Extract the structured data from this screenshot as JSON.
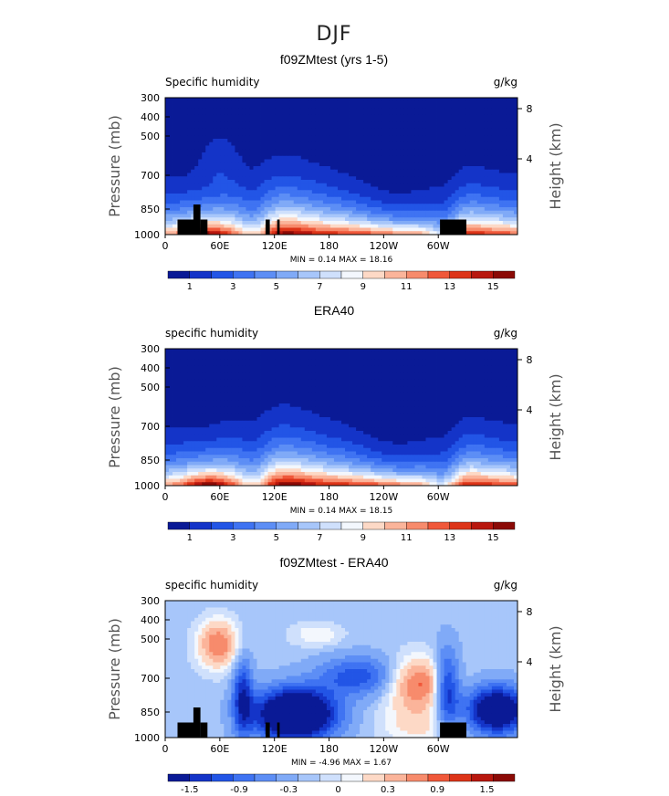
{
  "suptitle": "DJF",
  "chart_data": [
    {
      "type": "heatmap",
      "title": "f09ZMtest (yrs 1-5)",
      "variable_label": "Specific humidity",
      "units": "g/kg",
      "ylabel": "Pressure (mb)",
      "y2label": "Height (km)",
      "xticks": [
        "0",
        "60E",
        "120E",
        "180",
        "120W",
        "60W"
      ],
      "yticks": [
        "300",
        "400",
        "500",
        "700",
        "850",
        "1000"
      ],
      "y2ticks": [
        "8",
        "4"
      ],
      "stats_text": "MIN =    0.14   MAX =   18.16",
      "min": 0.14,
      "max": 18.16,
      "colorbar_labels": [
        "1",
        "3",
        "5",
        "7",
        "9",
        "11",
        "13",
        "15"
      ],
      "colorbar_colors": [
        "#0a1a96",
        "#1434c8",
        "#2255e6",
        "#3f73f2",
        "#5d8ef5",
        "#80aaf7",
        "#a7c6fa",
        "#cfe0fc",
        "#f3f7fd",
        "#fdd9c6",
        "#fbb49a",
        "#f78b6c",
        "#f0583a",
        "#dd3418",
        "#b8170e",
        "#8b0a06"
      ],
      "levels": [
        0,
        1,
        2,
        3,
        4,
        5,
        6,
        7,
        8,
        9,
        10,
        11,
        12,
        13,
        14,
        15,
        16
      ]
    },
    {
      "type": "heatmap",
      "title": "ERA40",
      "variable_label": "specific humidity",
      "units": "g/kg",
      "ylabel": "Pressure (mb)",
      "y2label": "Height (km)",
      "xticks": [
        "0",
        "60E",
        "120E",
        "180",
        "120W",
        "60W"
      ],
      "yticks": [
        "300",
        "400",
        "500",
        "700",
        "850",
        "1000"
      ],
      "y2ticks": [
        "8",
        "4"
      ],
      "stats_text": "MIN =    0.14   MAX =   18.15",
      "min": 0.14,
      "max": 18.15,
      "colorbar_labels": [
        "1",
        "3",
        "5",
        "7",
        "9",
        "11",
        "13",
        "15"
      ],
      "colorbar_colors": [
        "#0a1a96",
        "#1434c8",
        "#2255e6",
        "#3f73f2",
        "#5d8ef5",
        "#80aaf7",
        "#a7c6fa",
        "#cfe0fc",
        "#f3f7fd",
        "#fdd9c6",
        "#fbb49a",
        "#f78b6c",
        "#f0583a",
        "#dd3418",
        "#b8170e",
        "#8b0a06"
      ],
      "levels": [
        0,
        1,
        2,
        3,
        4,
        5,
        6,
        7,
        8,
        9,
        10,
        11,
        12,
        13,
        14,
        15,
        16
      ]
    },
    {
      "type": "heatmap",
      "title": "f09ZMtest - ERA40",
      "variable_label": "specific humidity",
      "units": "g/kg",
      "ylabel": "Pressure (mb)",
      "y2label": "Height (km)",
      "xticks": [
        "0",
        "60E",
        "120E",
        "180",
        "120W",
        "60W"
      ],
      "yticks": [
        "300",
        "400",
        "500",
        "700",
        "850",
        "1000"
      ],
      "y2ticks": [
        "8",
        "4"
      ],
      "stats_text": "MIN =   -4.96   MAX =    1.67",
      "min": -4.96,
      "max": 1.67,
      "colorbar_labels": [
        "-1.5",
        "-0.9",
        "-0.3",
        "0",
        "0.3",
        "0.9",
        "1.5"
      ],
      "colorbar_colors": [
        "#0a1a96",
        "#1434c8",
        "#2255e6",
        "#3f73f2",
        "#5d8ef5",
        "#80aaf7",
        "#a7c6fa",
        "#cfe0fc",
        "#f3f7fd",
        "#fdd9c6",
        "#fbb49a",
        "#f78b6c",
        "#f0583a",
        "#dd3418",
        "#b8170e",
        "#8b0a06"
      ],
      "levels": [
        -2.1,
        -1.8,
        -1.5,
        -1.2,
        -0.9,
        -0.6,
        -0.3,
        -0.1,
        0.1,
        0.3,
        0.6,
        0.9,
        1.2,
        1.5,
        1.8,
        2.1
      ]
    }
  ]
}
